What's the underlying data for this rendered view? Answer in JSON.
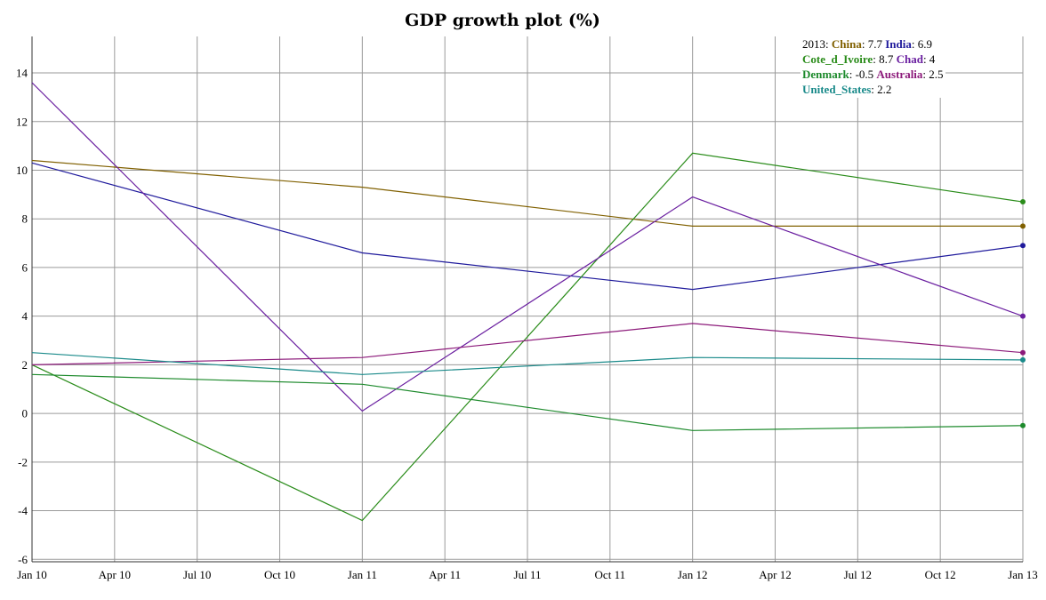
{
  "chart_data": {
    "type": "line",
    "title": "GDP growth plot (%)",
    "xlabel": "",
    "ylabel": "",
    "x": [
      "2010-01-01",
      "2011-01-01",
      "2012-01-01",
      "2013-01-01"
    ],
    "x_ticks": [
      "Jan 10",
      "Apr 10",
      "Jul 10",
      "Oct 10",
      "Jan 11",
      "Apr 11",
      "Jul 11",
      "Oct 11",
      "Jan 12",
      "Apr 12",
      "Jul 12",
      "Oct 12",
      "Jan 13"
    ],
    "y_ticks": [
      "14",
      "12",
      "10",
      "8",
      "6",
      "4",
      "2",
      "0",
      "-2",
      "-4",
      "-6"
    ],
    "ylim": [
      -6.1,
      15.5
    ],
    "grid": true,
    "legend_position": "top-right",
    "legend_year": "2013",
    "series": [
      {
        "name": "China",
        "color": "#806000",
        "values": [
          10.4,
          9.3,
          7.7,
          7.7
        ],
        "last_label": "7.7"
      },
      {
        "name": "India",
        "color": "#1f1a9c",
        "values": [
          10.3,
          6.6,
          5.1,
          6.9
        ],
        "last_label": "6.9"
      },
      {
        "name": "Cote_d_Ivoire",
        "color": "#2a8c1a",
        "values": [
          2.0,
          -4.4,
          10.7,
          8.7
        ],
        "last_label": "8.7"
      },
      {
        "name": "Chad",
        "color": "#6a1fa0",
        "values": [
          13.6,
          0.1,
          8.9,
          4.0
        ],
        "last_label": "4"
      },
      {
        "name": "Denmark",
        "color": "#1d8a2c",
        "values": [
          1.6,
          1.2,
          -0.7,
          -0.5
        ],
        "last_label": "-0.5"
      },
      {
        "name": "Australia",
        "color": "#8c1a7a",
        "values": [
          2.0,
          2.3,
          3.7,
          2.5
        ],
        "last_label": "2.5"
      },
      {
        "name": "United_States",
        "color": "#1a8a8a",
        "values": [
          2.5,
          1.6,
          2.3,
          2.2
        ],
        "last_label": "2.2"
      }
    ]
  }
}
